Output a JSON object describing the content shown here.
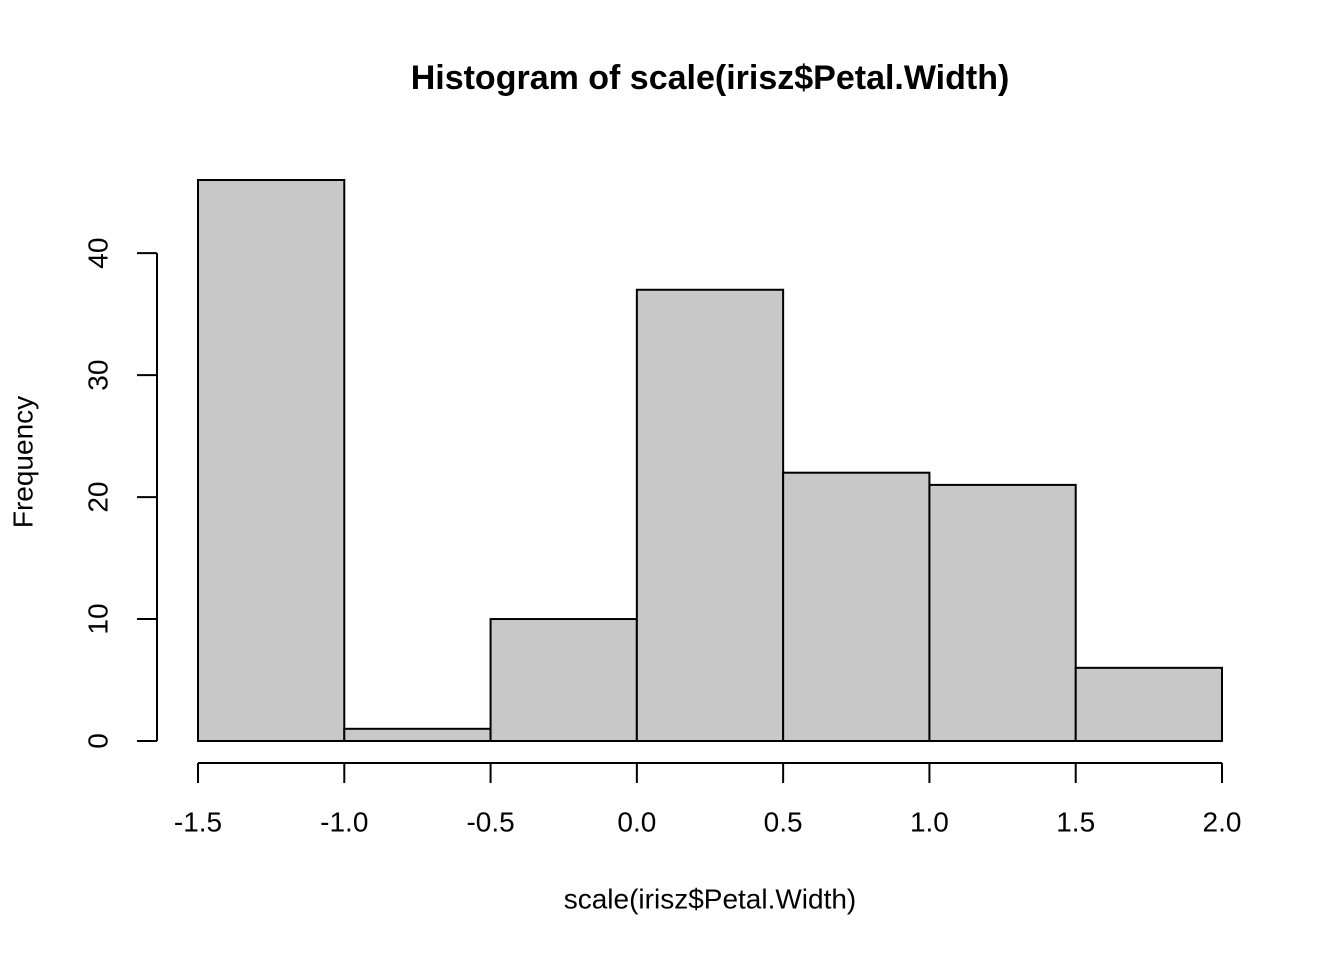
{
  "chart_data": {
    "type": "histogram",
    "title": "Histogram of scale(irisz$Petal.Width)",
    "xlabel": "scale(irisz$Petal.Width)",
    "ylabel": "Frequency",
    "bins": [
      -1.5,
      -1,
      -0.5,
      0,
      0.5,
      1,
      1.5,
      2
    ],
    "values": [
      46,
      1,
      10,
      37,
      22,
      21,
      6
    ],
    "color": "#c8c8c8",
    "xlim": [
      -1.5,
      2
    ],
    "ylim": [
      0,
      46
    ],
    "xticks": [
      -1.5,
      {
        "value": -1,
        "label": "-1.0"
      },
      -0.5,
      {
        "value": 0,
        "label": "0.0"
      },
      0.5,
      {
        "value": 1,
        "label": "1.0"
      },
      1.5,
      {
        "value": 2,
        "label": "2.0"
      }
    ],
    "yticks": [
      0,
      10,
      20,
      30,
      40
    ]
  }
}
